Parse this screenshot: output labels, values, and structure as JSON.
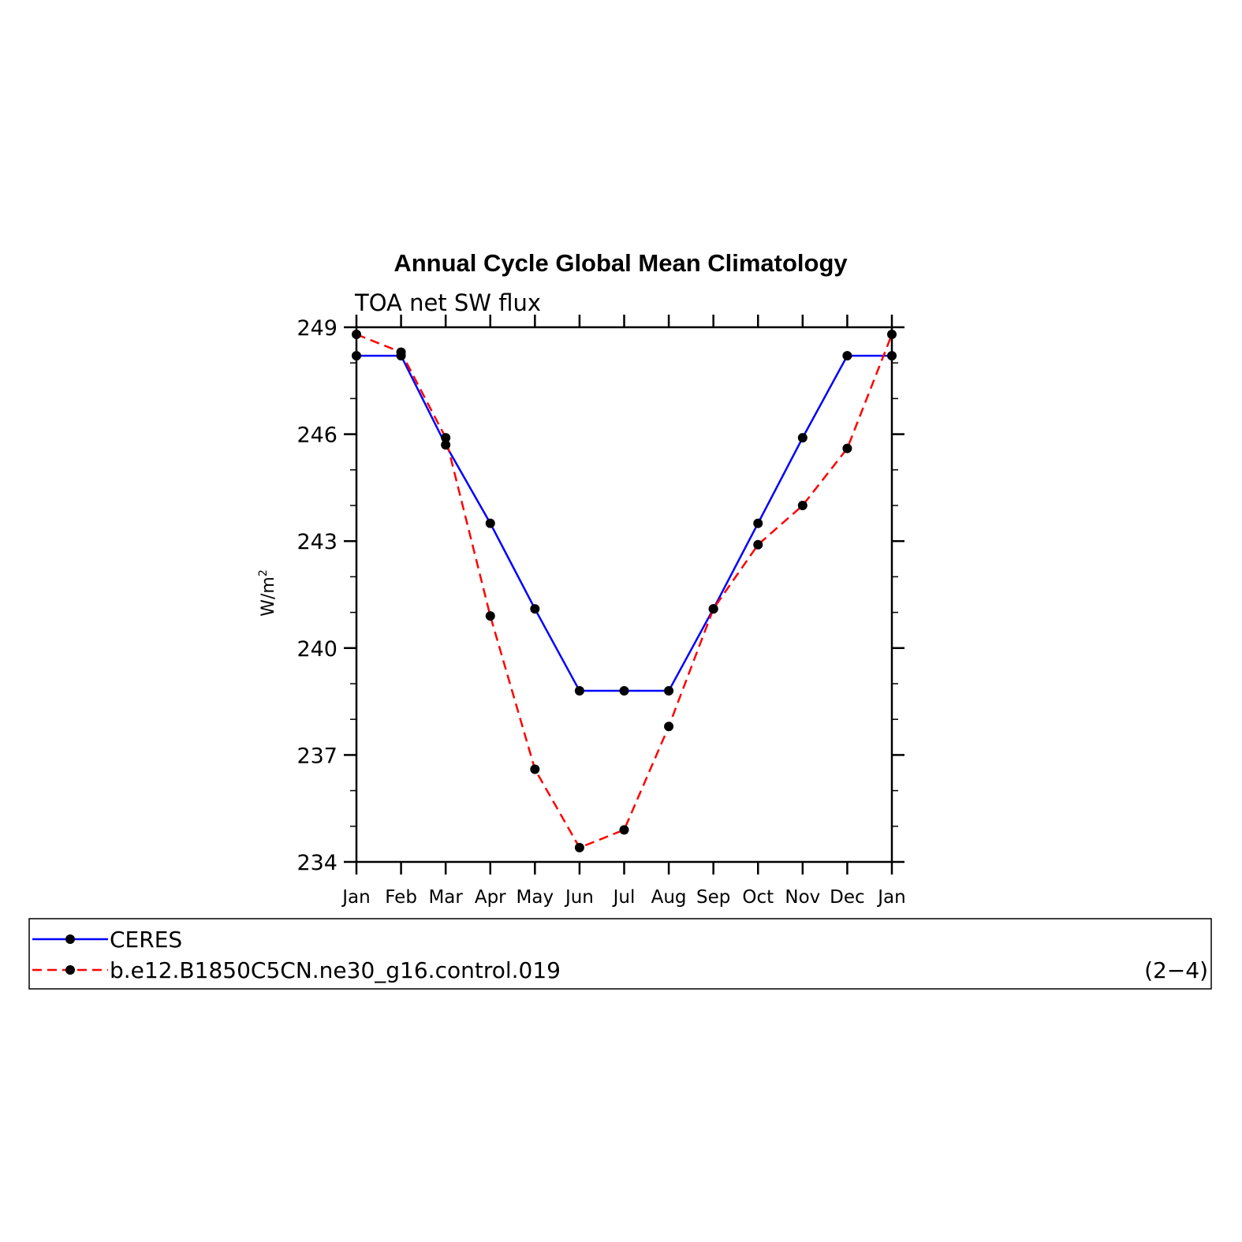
{
  "chart_data": {
    "type": "line",
    "title": "Annual Cycle Global Mean Climatology",
    "subtitle": "TOA net SW flux",
    "ylabel": "W/m",
    "ylabel_superscript": "2",
    "ylim": [
      234,
      249
    ],
    "yticks": [
      "249",
      "246",
      "243",
      "240",
      "237",
      "234"
    ],
    "categories": [
      "Jan",
      "Feb",
      "Mar",
      "Apr",
      "May",
      "Jun",
      "Jul",
      "Aug",
      "Sep",
      "Oct",
      "Nov",
      "Dec",
      "Jan"
    ],
    "grid": false,
    "legend_position": "bottom",
    "series": [
      {
        "name": "CERES",
        "color": "#0000ff",
        "dash": "solid",
        "values": [
          248.2,
          248.2,
          245.7,
          243.5,
          241.1,
          238.8,
          238.8,
          238.8,
          241.1,
          243.5,
          245.9,
          248.2,
          248.2
        ]
      },
      {
        "name": "b.e12.B1850C5CN.ne30_g16.control.019",
        "color": "#ff0000",
        "dash": "dashed",
        "values": [
          248.8,
          248.3,
          245.9,
          240.9,
          236.6,
          234.4,
          234.9,
          237.8,
          241.1,
          242.9,
          244.0,
          245.6,
          248.8
        ]
      }
    ],
    "annotation": "(2−4)"
  }
}
